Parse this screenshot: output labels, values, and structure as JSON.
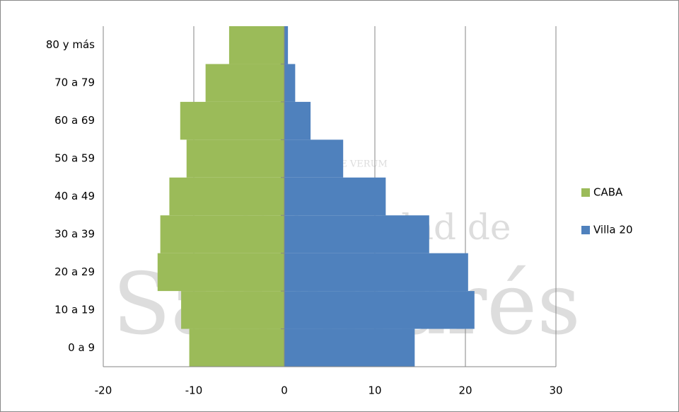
{
  "chart_data": {
    "type": "bar",
    "orientation": "horizontal",
    "categories": [
      "0 a 9",
      "10 a 19",
      "20 a 29",
      "30 a 39",
      "40 a 49",
      "50 a 59",
      "60 a 69",
      "70 a 79",
      "80 y más"
    ],
    "series": [
      {
        "name": "CABA",
        "color": "#9bbb59",
        "values": [
          -10.5,
          -11.4,
          -14.0,
          -13.7,
          -12.7,
          -10.8,
          -11.5,
          -8.7,
          -6.1
        ]
      },
      {
        "name": "Villa 20",
        "color": "#4f81bd",
        "values": [
          14.4,
          21.0,
          20.3,
          16.0,
          11.2,
          6.5,
          2.9,
          1.2,
          0.4
        ]
      }
    ],
    "xlim": [
      -20,
      30
    ],
    "xticks": [
      -20,
      -10,
      0,
      10,
      20,
      30
    ],
    "grid": true,
    "legend": "right",
    "watermark": [
      "Universidad de",
      "SanAndrés",
      "QUAERERE VERUM"
    ]
  }
}
